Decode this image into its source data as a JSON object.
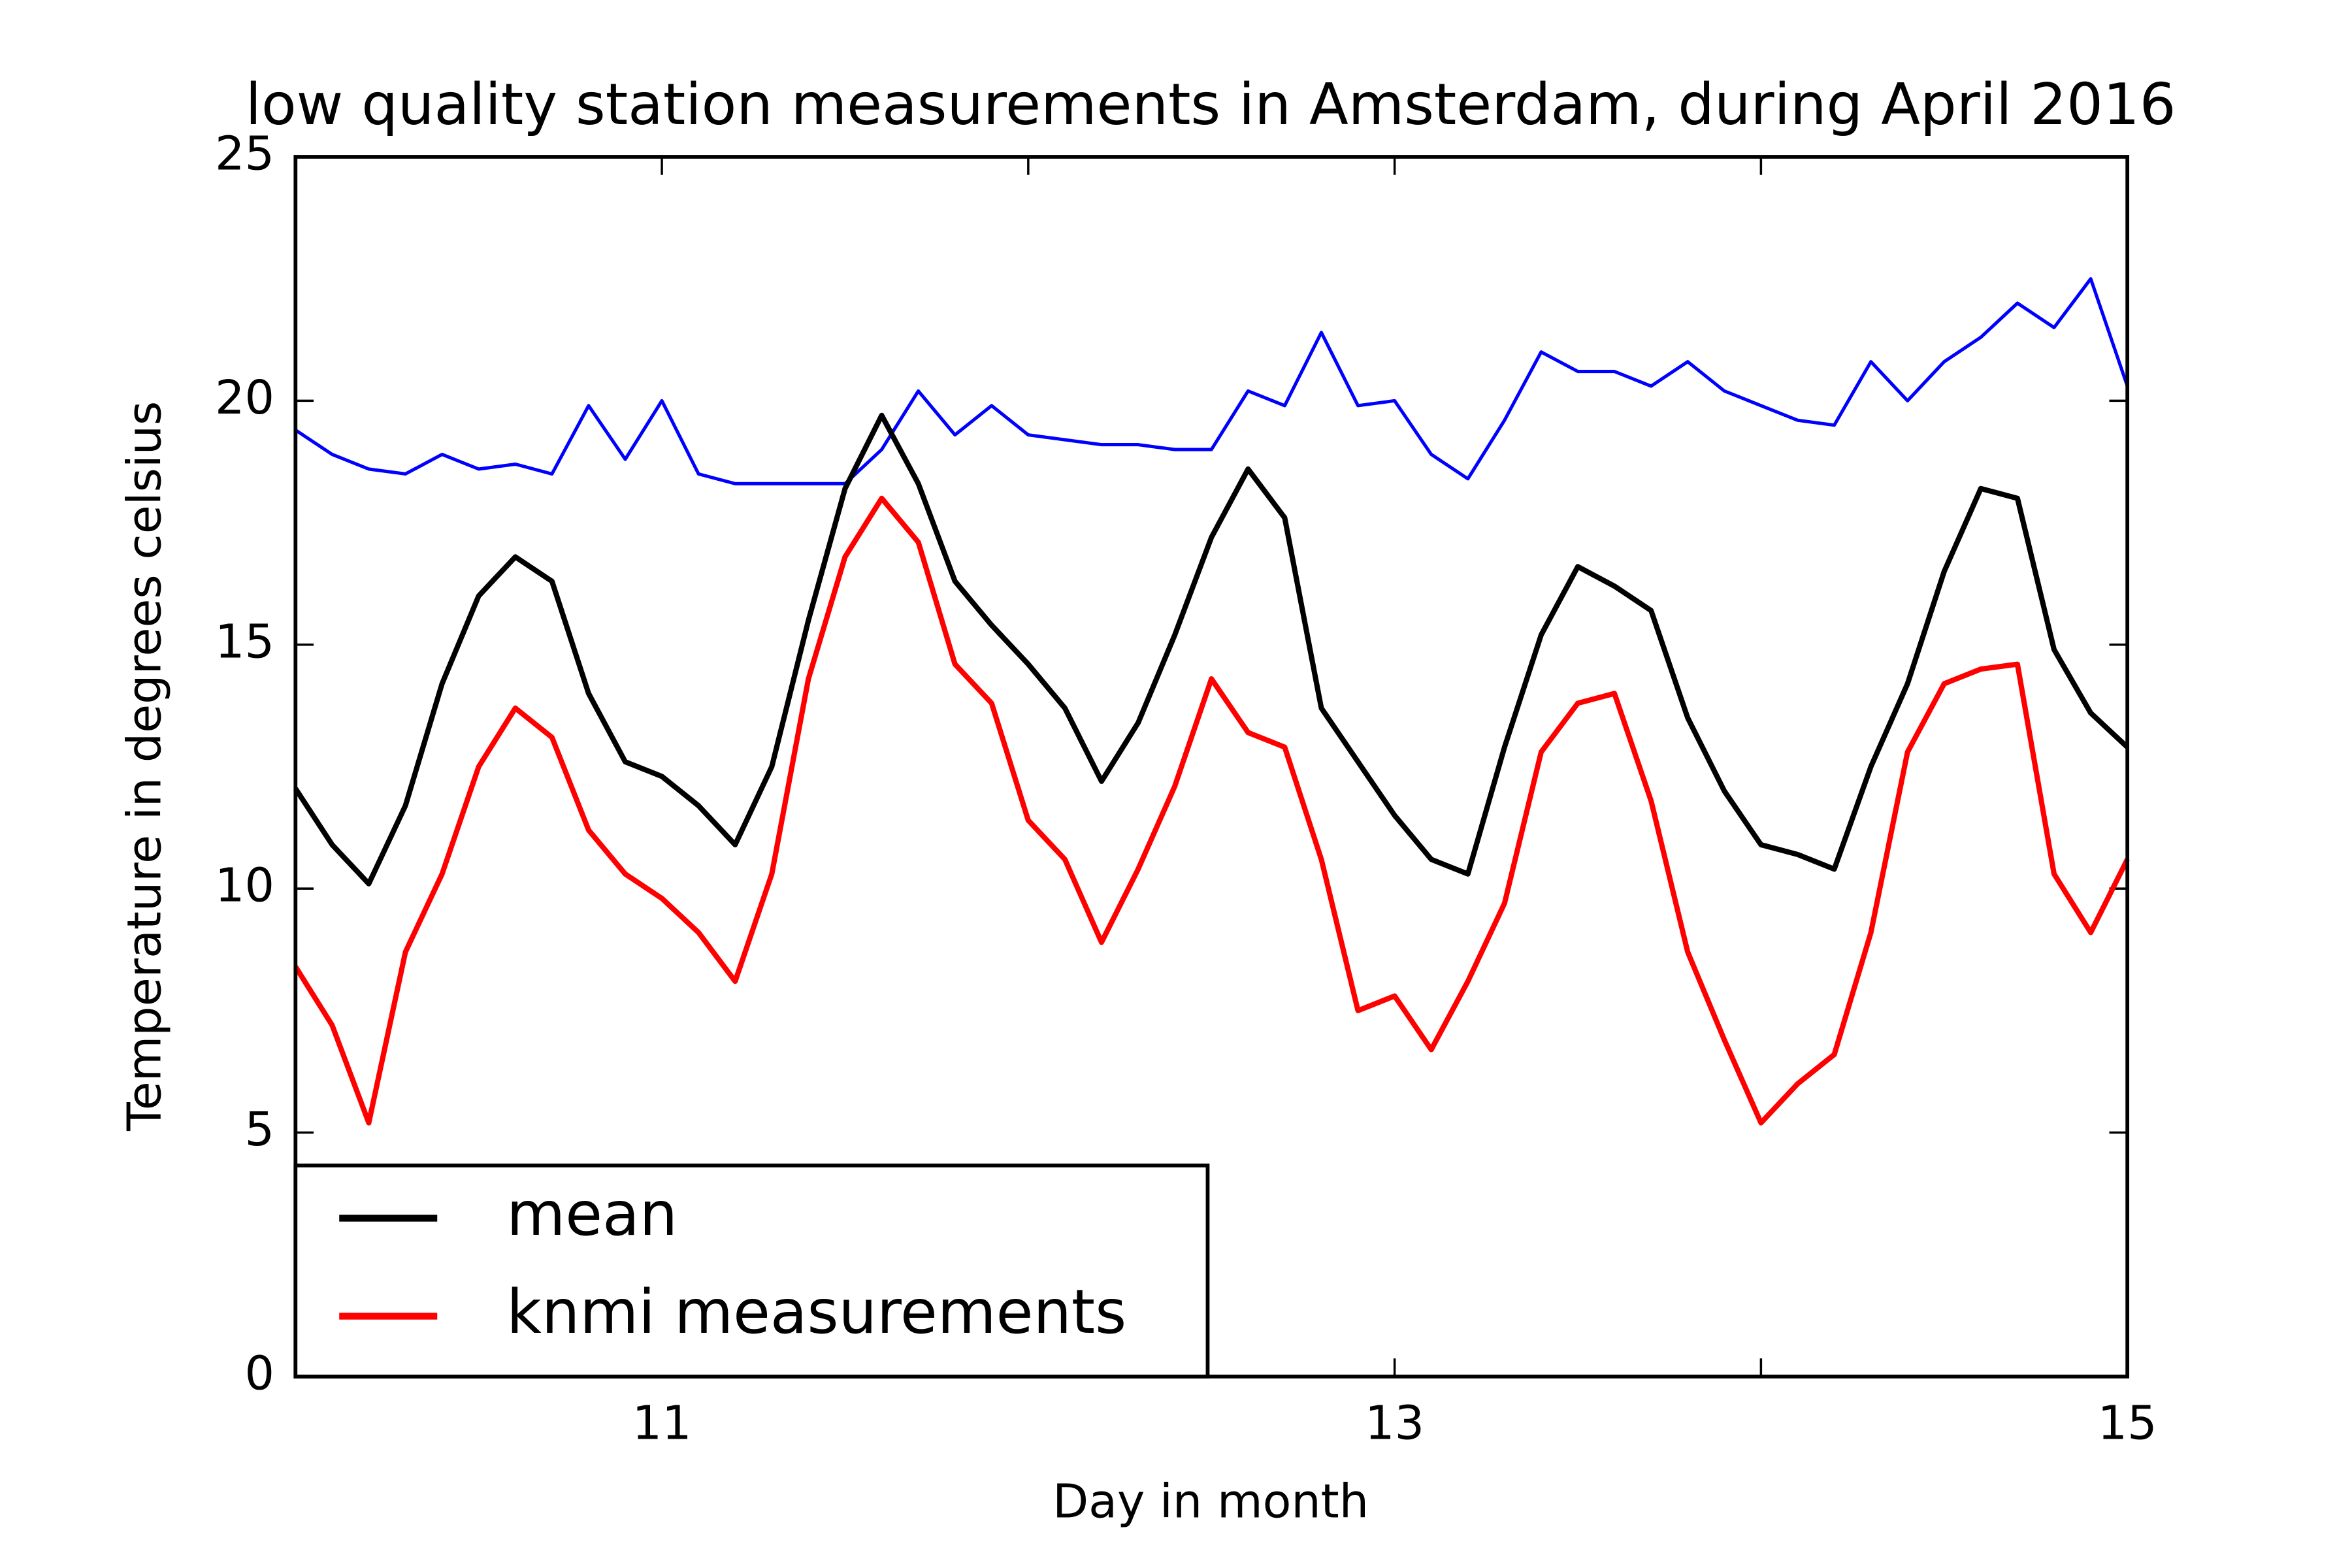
{
  "chart_data": {
    "type": "line",
    "title": "low quality station measurements in Amsterdam, during April 2016",
    "xlabel": "Day in month",
    "ylabel": "Temperature in degrees celsius",
    "x": [
      10.0,
      10.1,
      10.2,
      10.3,
      10.4,
      10.5,
      10.6,
      10.7,
      10.8,
      10.9,
      11.0,
      11.1,
      11.2,
      11.3,
      11.4,
      11.5,
      11.6,
      11.7,
      11.8,
      11.9,
      12.0,
      12.1,
      12.2,
      12.3,
      12.4,
      12.5,
      12.6,
      12.7,
      12.8,
      12.9,
      13.0,
      13.1,
      13.2,
      13.3,
      13.4,
      13.5,
      13.6,
      13.7,
      13.8,
      13.9,
      14.0,
      14.1,
      14.2,
      14.3,
      14.4,
      14.5,
      14.6,
      14.7,
      14.8,
      14.9,
      15.0
    ],
    "series": [
      {
        "name": "mean",
        "color": "#000000",
        "width": 3.5,
        "values": [
          12.05,
          10.9,
          10.1,
          11.7,
          14.2,
          16.0,
          16.8,
          16.3,
          14.0,
          12.6,
          12.3,
          11.7,
          10.9,
          12.5,
          15.5,
          18.2,
          19.7,
          18.3,
          16.3,
          15.4,
          14.6,
          13.7,
          12.2,
          13.4,
          15.2,
          17.2,
          18.6,
          17.6,
          13.7,
          12.6,
          11.5,
          10.6,
          10.3,
          12.9,
          15.2,
          16.6,
          16.2,
          15.7,
          13.5,
          12.0,
          10.9,
          10.7,
          10.4,
          12.5,
          14.2,
          16.5,
          18.2,
          18.0,
          14.9,
          13.6,
          12.9
        ]
      },
      {
        "name": "knmi measurements",
        "color": "#ff0000",
        "width": 3.5,
        "values": [
          8.4,
          7.2,
          5.2,
          8.7,
          10.3,
          12.5,
          13.7,
          13.1,
          11.2,
          10.3,
          9.8,
          9.1,
          8.1,
          10.3,
          14.3,
          16.8,
          18.0,
          17.1,
          14.6,
          13.8,
          11.4,
          10.6,
          8.9,
          10.4,
          12.1,
          14.3,
          13.2,
          12.9,
          10.6,
          7.5,
          7.8,
          6.7,
          8.1,
          9.7,
          12.8,
          13.8,
          14.0,
          11.8,
          8.7,
          6.9,
          5.2,
          6.0,
          6.6,
          9.1,
          12.8,
          14.2,
          14.5,
          14.6,
          10.3,
          9.1,
          10.6
        ]
      },
      {
        "color": "#0000ff",
        "width": 2.2,
        "values": [
          19.4,
          18.9,
          18.6,
          18.5,
          18.9,
          18.6,
          18.7,
          18.5,
          19.9,
          18.8,
          20.0,
          18.5,
          18.3,
          18.3,
          18.3,
          18.3,
          19.0,
          20.2,
          19.3,
          19.9,
          19.3,
          19.2,
          19.1,
          19.1,
          19.0,
          19.0,
          20.2,
          19.9,
          21.4,
          19.9,
          20.0,
          18.9,
          18.4,
          19.6,
          21.0,
          20.6,
          20.6,
          20.3,
          20.8,
          20.2,
          19.9,
          19.6,
          19.5,
          20.8,
          20.0,
          20.8,
          21.3,
          22.0,
          21.5,
          22.5,
          20.3
        ]
      }
    ],
    "xlim": [
      10,
      15
    ],
    "xticks": [
      11,
      13,
      15
    ],
    "xticks_unlabeled": [
      12,
      14
    ],
    "ylim": [
      0,
      25
    ],
    "yticks": [
      0,
      5,
      10,
      15,
      20,
      25
    ],
    "grid": false,
    "legend": "lower left"
  }
}
